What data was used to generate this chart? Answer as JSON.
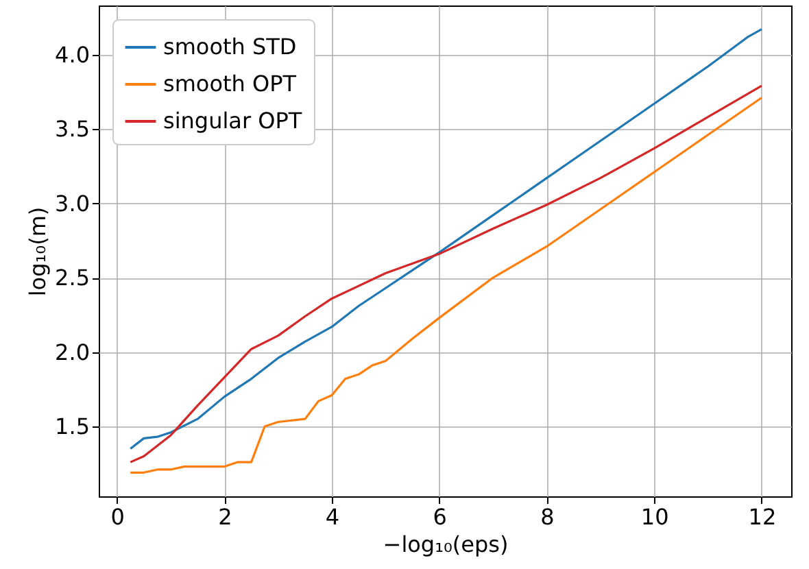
{
  "chart_data": {
    "type": "line",
    "xlabel": "−log₁₀(eps)",
    "ylabel": "log₁₀(m)",
    "xlim": [
      -0.34,
      12.55
    ],
    "ylim": [
      1.03,
      4.33
    ],
    "xticks": [
      0,
      2,
      4,
      6,
      8,
      10,
      12
    ],
    "yticks": [
      1.5,
      {
        "value": 2,
        "label": "2.0"
      },
      2.5,
      {
        "value": 3,
        "label": "3.0"
      },
      3.5,
      {
        "value": 4,
        "label": "4.0"
      }
    ],
    "grid": true,
    "legend": "top left",
    "series": [
      {
        "name": "smooth STD",
        "color": "#1f77b4",
        "x": [
          0.25,
          0.5,
          0.75,
          1,
          1.5,
          2,
          2.5,
          3,
          3.5,
          4,
          4.5,
          5,
          5.5,
          6,
          7,
          8,
          9,
          10,
          11,
          11.75,
          12
        ],
        "values": [
          1.35,
          1.42,
          1.43,
          1.46,
          1.55,
          1.7,
          1.82,
          1.96,
          2.07,
          2.17,
          2.31,
          2.43,
          2.55,
          2.67,
          2.92,
          3.17,
          3.42,
          3.67,
          3.92,
          4.12,
          4.17
        ]
      },
      {
        "name": "smooth OPT",
        "color": "#ff7f0e",
        "x": [
          0.25,
          0.5,
          0.75,
          1,
          1.25,
          2,
          2.25,
          2.5,
          2.75,
          3,
          3.5,
          3.75,
          4,
          4.25,
          4.5,
          4.75,
          5,
          5.5,
          6,
          7,
          8,
          9,
          10,
          11,
          12
        ],
        "values": [
          1.19,
          1.19,
          1.21,
          1.21,
          1.23,
          1.23,
          1.26,
          1.26,
          1.5,
          1.53,
          1.55,
          1.67,
          1.71,
          1.82,
          1.85,
          1.91,
          1.94,
          2.09,
          2.23,
          2.5,
          2.71,
          2.96,
          3.21,
          3.46,
          3.71
        ]
      },
      {
        "name": "singular OPT",
        "color": "#d62728",
        "x": [
          0.25,
          0.5,
          1,
          1.5,
          2,
          2.5,
          3,
          3.5,
          4,
          5,
          6,
          7,
          8,
          9,
          10,
          11,
          12
        ],
        "values": [
          1.26,
          1.3,
          1.44,
          1.64,
          1.83,
          2.02,
          2.11,
          2.24,
          2.36,
          2.53,
          2.66,
          2.83,
          2.99,
          3.17,
          3.37,
          3.58,
          3.79
        ]
      }
    ]
  }
}
